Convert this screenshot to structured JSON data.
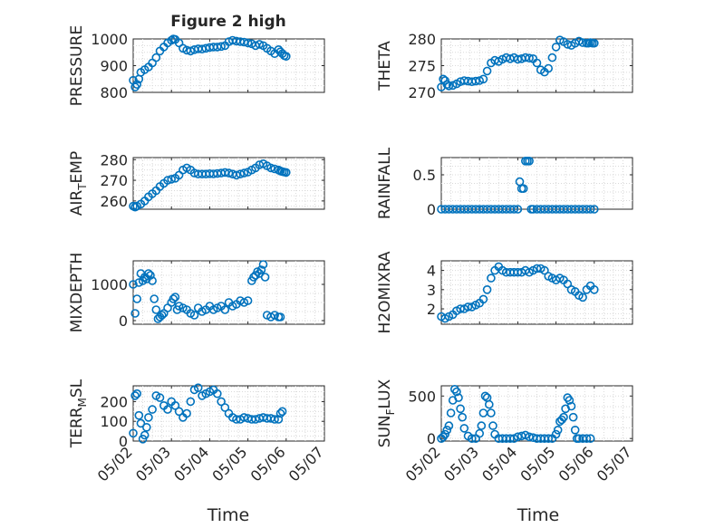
{
  "figure": {
    "title": "Figure 2 high"
  },
  "colors": {
    "series": "#0072bd",
    "axis": "#262626",
    "grid": "#d9d9d9"
  },
  "chart_data": [
    {
      "type": "scatter",
      "ylabel": "PRESSURE",
      "xlim": [
        "05/02",
        "05/07"
      ],
      "ylim": [
        800,
        1000
      ],
      "yticks": [
        800,
        900,
        1000
      ],
      "grid": true,
      "x": [
        0,
        0.05,
        0.1,
        0.15,
        0.2,
        0.3,
        0.4,
        0.5,
        0.6,
        0.7,
        0.8,
        0.9,
        1.0,
        1.05,
        1.1,
        1.2,
        1.3,
        1.4,
        1.5,
        1.6,
        1.7,
        1.8,
        1.9,
        2.0,
        2.1,
        2.2,
        2.3,
        2.4,
        2.5,
        2.6,
        2.7,
        2.8,
        2.9,
        3.0,
        3.1,
        3.2,
        3.3,
        3.4,
        3.5,
        3.6,
        3.7,
        3.8,
        3.85,
        3.9,
        3.95,
        4.0
      ],
      "y": [
        845,
        820,
        830,
        850,
        875,
        885,
        895,
        910,
        930,
        955,
        970,
        985,
        995,
        1000,
        998,
        985,
        965,
        958,
        955,
        960,
        963,
        962,
        965,
        968,
        970,
        970,
        972,
        975,
        990,
        995,
        992,
        990,
        988,
        985,
        982,
        975,
        980,
        975,
        965,
        955,
        945,
        960,
        952,
        945,
        938,
        935
      ]
    },
    {
      "type": "scatter",
      "ylabel": "THETA",
      "xlim": [
        "05/02",
        "05/07"
      ],
      "ylim": [
        270,
        280
      ],
      "yticks": [
        270,
        275,
        280
      ],
      "grid": true,
      "x": [
        0,
        0.05,
        0.1,
        0.15,
        0.2,
        0.3,
        0.4,
        0.5,
        0.6,
        0.7,
        0.8,
        0.9,
        1.0,
        1.1,
        1.2,
        1.3,
        1.4,
        1.5,
        1.6,
        1.7,
        1.8,
        1.9,
        2.0,
        2.1,
        2.2,
        2.3,
        2.4,
        2.5,
        2.6,
        2.7,
        2.8,
        2.9,
        3.0,
        3.1,
        3.2,
        3.3,
        3.4,
        3.5,
        3.6,
        3.7,
        3.8,
        3.85,
        3.9,
        3.95,
        4.0
      ],
      "y": [
        271,
        272.5,
        272.2,
        271.5,
        271.2,
        271.3,
        271.6,
        272,
        272.2,
        272.1,
        272,
        272.1,
        272.2,
        272.5,
        274,
        275.5,
        276,
        275.8,
        276.2,
        276.5,
        276.3,
        276.5,
        276.2,
        276.3,
        276.5,
        276.4,
        276.3,
        275.5,
        274.2,
        273.8,
        274.5,
        276.5,
        278.5,
        279.8,
        279.5,
        279,
        278.8,
        279.2,
        279.6,
        279.3,
        279.2,
        279.2,
        279.3,
        279.2,
        279.2
      ]
    },
    {
      "type": "scatter",
      "ylabel": "AIR_TEMP",
      "xlim": [
        "05/02",
        "05/07"
      ],
      "ylim": [
        256,
        281
      ],
      "yticks": [
        260,
        270,
        280
      ],
      "grid": true,
      "x": [
        0,
        0.05,
        0.1,
        0.2,
        0.3,
        0.4,
        0.5,
        0.6,
        0.7,
        0.8,
        0.9,
        1.0,
        1.1,
        1.2,
        1.3,
        1.4,
        1.5,
        1.6,
        1.7,
        1.8,
        1.9,
        2.0,
        2.1,
        2.2,
        2.3,
        2.4,
        2.5,
        2.6,
        2.7,
        2.8,
        2.9,
        3.0,
        3.1,
        3.2,
        3.3,
        3.4,
        3.5,
        3.6,
        3.7,
        3.8,
        3.85,
        3.9,
        3.95,
        4.0
      ],
      "y": [
        257.5,
        257,
        257.5,
        258.5,
        260,
        262,
        263.5,
        265,
        267,
        268.5,
        270,
        270.5,
        271,
        272.5,
        275,
        276,
        275,
        273.5,
        273,
        273,
        273,
        273.2,
        273.1,
        273.3,
        273.5,
        273.8,
        273.5,
        273,
        272.5,
        273,
        273.5,
        274,
        275,
        276,
        277.5,
        278,
        277,
        276,
        275.5,
        275,
        274.5,
        274.2,
        274,
        273.8
      ]
    },
    {
      "type": "scatter",
      "ylabel": "RAINFALL",
      "xlim": [
        "05/02",
        "05/07"
      ],
      "ylim": [
        0,
        0.75
      ],
      "yticks": [
        0,
        0.5
      ],
      "grid": true,
      "x": [
        0,
        0.1,
        0.2,
        0.3,
        0.4,
        0.5,
        0.6,
        0.7,
        0.8,
        0.9,
        1.0,
        1.1,
        1.2,
        1.3,
        1.4,
        1.5,
        1.6,
        1.7,
        1.8,
        1.9,
        2.0,
        2.05,
        2.1,
        2.15,
        2.2,
        2.25,
        2.3,
        2.35,
        2.4,
        2.5,
        2.6,
        2.7,
        2.8,
        2.9,
        3.0,
        3.1,
        3.2,
        3.3,
        3.4,
        3.5,
        3.6,
        3.7,
        3.8,
        3.9,
        4.0
      ],
      "y": [
        0,
        0,
        0,
        0,
        0,
        0,
        0,
        0,
        0,
        0,
        0,
        0,
        0,
        0,
        0,
        0,
        0,
        0,
        0,
        0,
        0,
        0.4,
        0.3,
        0.3,
        0.7,
        0.7,
        0.7,
        0,
        0,
        0,
        0,
        0,
        0,
        0,
        0,
        0,
        0,
        0,
        0,
        0,
        0,
        0,
        0,
        0,
        0
      ]
    },
    {
      "type": "scatter",
      "ylabel": "MIXDEPTH",
      "xlim": [
        "05/02",
        "05/07"
      ],
      "ylim": [
        -100,
        1650
      ],
      "yticks": [
        0,
        1000
      ],
      "grid": true,
      "x": [
        0,
        0.05,
        0.1,
        0.15,
        0.2,
        0.25,
        0.3,
        0.35,
        0.4,
        0.45,
        0.5,
        0.55,
        0.6,
        0.65,
        0.7,
        0.75,
        0.8,
        0.9,
        1.0,
        1.05,
        1.1,
        1.15,
        1.2,
        1.3,
        1.4,
        1.5,
        1.6,
        1.7,
        1.8,
        1.9,
        2.0,
        2.1,
        2.2,
        2.3,
        2.4,
        2.5,
        2.6,
        2.7,
        2.8,
        2.9,
        3.0,
        3.1,
        3.15,
        3.2,
        3.25,
        3.3,
        3.35,
        3.4,
        3.45,
        3.5,
        3.6,
        3.7,
        3.8,
        3.85
      ],
      "y": [
        1000,
        200,
        600,
        1050,
        1300,
        1100,
        1200,
        1150,
        1300,
        1250,
        1100,
        600,
        300,
        50,
        100,
        150,
        200,
        350,
        500,
        600,
        650,
        300,
        400,
        350,
        300,
        200,
        150,
        350,
        250,
        300,
        400,
        300,
        350,
        400,
        300,
        500,
        400,
        450,
        550,
        500,
        550,
        1100,
        1200,
        1250,
        1350,
        1300,
        1400,
        1550,
        1200,
        150,
        100,
        150,
        100,
        100
      ]
    },
    {
      "type": "scatter",
      "ylabel": "H2OMIXRA",
      "xlim": [
        "05/02",
        "05/07"
      ],
      "ylim": [
        1.2,
        4.5
      ],
      "yticks": [
        2,
        3,
        4
      ],
      "grid": true,
      "x": [
        0,
        0.1,
        0.2,
        0.3,
        0.4,
        0.5,
        0.6,
        0.7,
        0.8,
        0.9,
        1.0,
        1.1,
        1.2,
        1.3,
        1.4,
        1.5,
        1.6,
        1.7,
        1.8,
        1.9,
        2.0,
        2.1,
        2.2,
        2.3,
        2.4,
        2.5,
        2.6,
        2.7,
        2.8,
        2.9,
        3.0,
        3.1,
        3.2,
        3.3,
        3.4,
        3.5,
        3.6,
        3.7,
        3.8,
        3.9,
        4.0
      ],
      "y": [
        1.6,
        1.5,
        1.6,
        1.7,
        1.9,
        2,
        2,
        2.1,
        2.1,
        2.2,
        2.3,
        2.5,
        3,
        3.6,
        4,
        4.2,
        4,
        3.9,
        3.9,
        3.9,
        3.9,
        3.9,
        4,
        3.9,
        4,
        4.1,
        4.1,
        4,
        3.7,
        3.6,
        3.5,
        3.6,
        3.5,
        3.3,
        3,
        2.9,
        2.7,
        2.6,
        3,
        3.2,
        3
      ]
    },
    {
      "type": "scatter",
      "ylabel": "TERR_MSL",
      "xlim": [
        "05/02",
        "05/07"
      ],
      "ylim": [
        0,
        280
      ],
      "yticks": [
        0,
        100,
        200
      ],
      "grid": true,
      "x": [
        0,
        0.05,
        0.1,
        0.15,
        0.2,
        0.25,
        0.3,
        0.35,
        0.4,
        0.5,
        0.6,
        0.7,
        0.8,
        0.9,
        1.0,
        1.1,
        1.2,
        1.3,
        1.4,
        1.5,
        1.6,
        1.7,
        1.8,
        1.9,
        2.0,
        2.1,
        2.2,
        2.3,
        2.4,
        2.5,
        2.6,
        2.7,
        2.8,
        2.9,
        3.0,
        3.1,
        3.2,
        3.3,
        3.4,
        3.5,
        3.6,
        3.7,
        3.8,
        3.85,
        3.9
      ],
      "y": [
        40,
        230,
        240,
        130,
        90,
        10,
        30,
        70,
        120,
        160,
        230,
        220,
        180,
        160,
        200,
        180,
        150,
        120,
        140,
        200,
        260,
        270,
        230,
        240,
        250,
        260,
        240,
        200,
        170,
        140,
        120,
        110,
        110,
        120,
        115,
        110,
        110,
        115,
        120,
        115,
        115,
        110,
        110,
        140,
        150
      ]
    },
    {
      "type": "scatter",
      "ylabel": "SUN_FLUX",
      "xlim": [
        "05/02",
        "05/07"
      ],
      "ylim": [
        -30,
        620
      ],
      "yticks": [
        0,
        500
      ],
      "grid": true,
      "x": [
        0,
        0.05,
        0.1,
        0.15,
        0.2,
        0.25,
        0.3,
        0.35,
        0.4,
        0.45,
        0.5,
        0.55,
        0.6,
        0.7,
        0.8,
        0.9,
        1.0,
        1.05,
        1.1,
        1.15,
        1.2,
        1.25,
        1.3,
        1.35,
        1.4,
        1.5,
        1.6,
        1.7,
        1.8,
        1.9,
        2.0,
        2.1,
        2.2,
        2.3,
        2.4,
        2.5,
        2.6,
        2.7,
        2.8,
        2.9,
        3.0,
        3.05,
        3.1,
        3.15,
        3.2,
        3.25,
        3.3,
        3.35,
        3.4,
        3.45,
        3.5,
        3.55,
        3.6,
        3.7,
        3.8,
        3.9
      ],
      "y": [
        0,
        20,
        50,
        100,
        150,
        300,
        450,
        580,
        550,
        480,
        350,
        250,
        120,
        30,
        0,
        0,
        60,
        150,
        300,
        500,
        480,
        400,
        300,
        150,
        50,
        0,
        0,
        0,
        0,
        0,
        20,
        30,
        40,
        20,
        10,
        0,
        0,
        0,
        0,
        0,
        50,
        100,
        200,
        220,
        250,
        350,
        480,
        450,
        380,
        250,
        100,
        0,
        0,
        0,
        0,
        0
      ]
    }
  ],
  "panels": [
    {
      "ylabel_main": "PRESSURE",
      "ylabel_sub": "",
      "ylabel_tail": ""
    },
    {
      "ylabel_main": "THETA",
      "ylabel_sub": "",
      "ylabel_tail": ""
    },
    {
      "ylabel_main": "AIR",
      "ylabel_sub": "T",
      "ylabel_tail": "EMP"
    },
    {
      "ylabel_main": "RAINFALL",
      "ylabel_sub": "",
      "ylabel_tail": ""
    },
    {
      "ylabel_main": "MIXDEPTH",
      "ylabel_sub": "",
      "ylabel_tail": ""
    },
    {
      "ylabel_main": "H2OMIXRA",
      "ylabel_sub": "",
      "ylabel_tail": ""
    },
    {
      "ylabel_main": "TERR",
      "ylabel_sub": "M",
      "ylabel_tail": "SL"
    },
    {
      "ylabel_main": "SUN",
      "ylabel_sub": "F",
      "ylabel_tail": "LUX"
    }
  ],
  "xaxis": {
    "ticks": [
      "05/02",
      "05/03",
      "05/04",
      "05/05",
      "05/06",
      "05/07"
    ],
    "label": "Time"
  }
}
